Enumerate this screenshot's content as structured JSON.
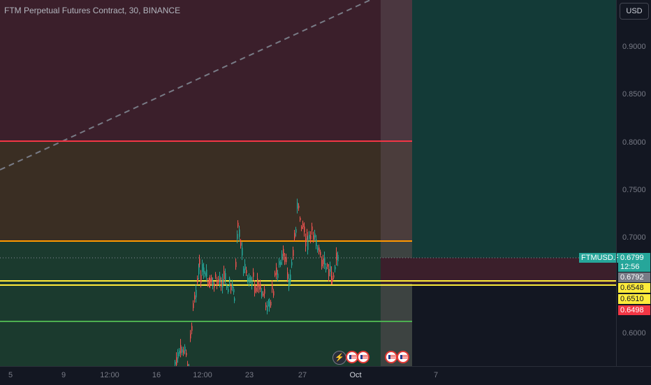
{
  "header": {
    "title": "FTM Perpetual Futures Contract, 30, BINANCE"
  },
  "axis": {
    "currency_button": "USD",
    "ticks": [
      "0.9000",
      "0.8500",
      "0.8000",
      "0.7500",
      "0.7000",
      "0.6000"
    ]
  },
  "price_tags": {
    "current_price": "0.6799",
    "countdown": "12:56",
    "tag_1": "0.6792",
    "tag_2": "0.6548",
    "tag_3": "0.6510",
    "tag_4": "0.6498"
  },
  "symbol_label": "FTMUSD.P",
  "x_axis": {
    "ticks": [
      "5",
      "9",
      "12:00",
      "16",
      "12:00",
      "23",
      "27",
      "Oct",
      "7"
    ]
  },
  "events": {
    "bolt_icon": "lightning-icon",
    "flag_icon": "us-flag-icon"
  },
  "colors": {
    "up": "#26a69a",
    "down": "#ef5350",
    "red_line": "#f23645",
    "orange_line": "#ff9800",
    "yellow_line": "#ffeb3b",
    "green_line": "#4caf50"
  }
}
